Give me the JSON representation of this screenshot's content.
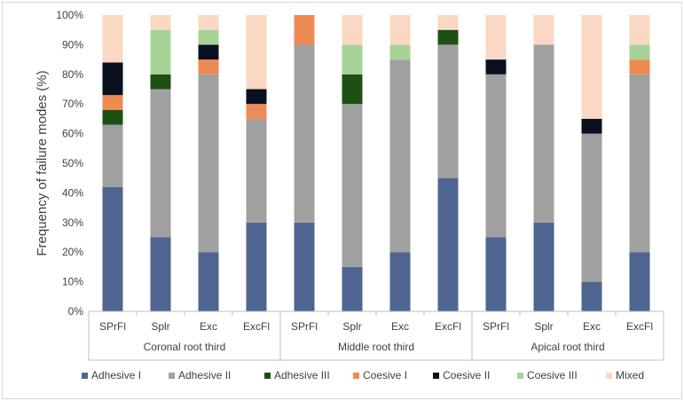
{
  "chart_data": {
    "type": "bar",
    "stacked": true,
    "ylabel": "Frequency of failure modes (%)",
    "ylim": [
      0,
      100
    ],
    "yticks": [
      "0%",
      "10%",
      "20%",
      "30%",
      "40%",
      "50%",
      "60%",
      "70%",
      "80%",
      "90%",
      "100%"
    ],
    "groups": [
      "Coronal root third",
      "Middle root third",
      "Apical root third"
    ],
    "categories": [
      "SPrFl",
      "Splr",
      "Exc",
      "ExcFl",
      "SPrFl",
      "Splr",
      "Exc",
      "ExcFl",
      "SPrFl",
      "Splr",
      "Exc",
      "ExcFl"
    ],
    "legend_position": "bottom",
    "series": [
      {
        "name": "Adhesive I",
        "color": "#4f6591",
        "values": [
          42,
          25,
          20,
          30,
          30,
          15,
          20,
          45,
          25,
          30,
          10,
          20
        ]
      },
      {
        "name": "Adhesive II",
        "color": "#a0a0a0",
        "values": [
          21,
          50,
          60,
          35,
          60,
          55,
          65,
          45,
          55,
          60,
          50,
          60
        ]
      },
      {
        "name": "Adhesive III",
        "color": "#1e5014",
        "values": [
          5,
          5,
          0,
          0,
          0,
          10,
          0,
          5,
          0,
          0,
          0,
          0
        ]
      },
      {
        "name": "Coesive I",
        "color": "#ef8a55",
        "values": [
          5,
          0,
          5,
          5,
          10,
          0,
          0,
          0,
          0,
          0,
          0,
          5
        ]
      },
      {
        "name": "Coesive II",
        "color": "#0b1020",
        "values": [
          11,
          0,
          5,
          5,
          0,
          0,
          0,
          0,
          5,
          0,
          5,
          0
        ]
      },
      {
        "name": "Coesive III",
        "color": "#a6d395",
        "values": [
          0,
          15,
          5,
          0,
          0,
          10,
          5,
          0,
          0,
          0,
          0,
          5
        ]
      },
      {
        "name": "Mixed",
        "color": "#fbd8c3",
        "values": [
          16,
          5,
          5,
          25,
          0,
          10,
          10,
          5,
          15,
          10,
          35,
          10
        ]
      }
    ]
  }
}
